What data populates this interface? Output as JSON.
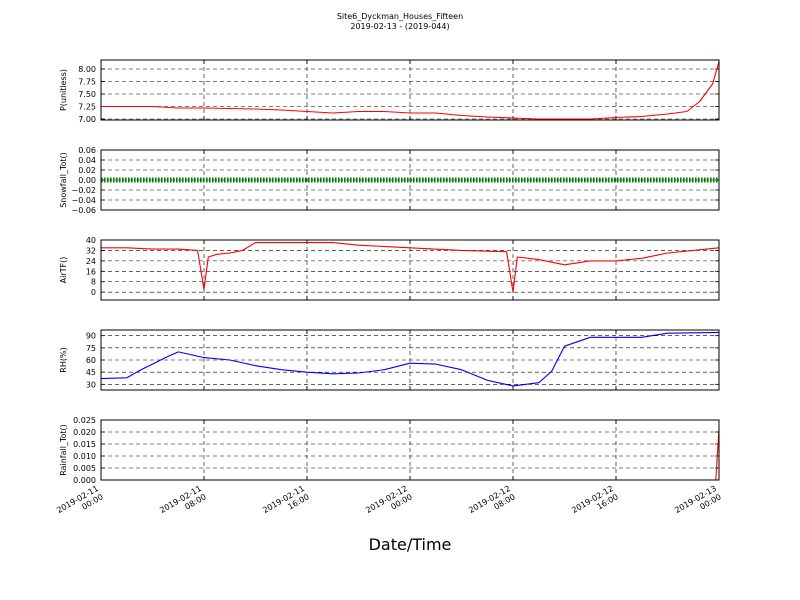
{
  "figure": {
    "title_line1": "Site6_Dyckman_Houses_Fifteen",
    "title_line2": "2019-02-13 - (2019-044)",
    "xlabel": "Date/Time"
  },
  "x_axis": {
    "start": "2019-02-11 00:00",
    "end": "2019-02-13 00:00",
    "tick_labels": [
      [
        "2019-02-11",
        "00:00"
      ],
      [
        "2019-02-11",
        "08:00"
      ],
      [
        "2019-02-11",
        "16:00"
      ],
      [
        "2019-02-12",
        "00:00"
      ],
      [
        "2019-02-12",
        "08:00"
      ],
      [
        "2019-02-12",
        "16:00"
      ],
      [
        "2019-02-13",
        "00:00"
      ]
    ]
  },
  "chart_data": [
    {
      "type": "line",
      "ylabel": "P(unitless)",
      "ylim": [
        6.98,
        8.18
      ],
      "yticks": [
        7.0,
        7.25,
        7.5,
        7.75,
        8.0
      ],
      "ytick_labels": [
        "7.00",
        "7.25",
        "7.50",
        "7.75",
        "8.00"
      ],
      "grid": true,
      "color": "#ff0000",
      "x": [
        "2019-02-11 00:00",
        "2019-02-11 02:00",
        "2019-02-11 04:00",
        "2019-02-11 06:00",
        "2019-02-11 08:00",
        "2019-02-11 10:00",
        "2019-02-11 12:00",
        "2019-02-11 14:00",
        "2019-02-11 16:00",
        "2019-02-11 18:00",
        "2019-02-11 20:00",
        "2019-02-11 22:00",
        "2019-02-12 00:00",
        "2019-02-12 02:00",
        "2019-02-12 04:00",
        "2019-02-12 06:00",
        "2019-02-12 08:00",
        "2019-02-12 10:00",
        "2019-02-12 12:00",
        "2019-02-12 14:00",
        "2019-02-12 16:00",
        "2019-02-12 18:00",
        "2019-02-12 20:00",
        "2019-02-12 21:30",
        "2019-02-12 22:30",
        "2019-02-12 23:30",
        "2019-02-13 00:00"
      ],
      "y": [
        7.25,
        7.25,
        7.25,
        7.22,
        7.22,
        7.21,
        7.2,
        7.18,
        7.15,
        7.12,
        7.15,
        7.15,
        7.12,
        7.12,
        7.07,
        7.04,
        7.02,
        7.0,
        7.0,
        7.0,
        7.03,
        7.05,
        7.1,
        7.15,
        7.35,
        7.7,
        8.15
      ]
    },
    {
      "type": "line",
      "ylabel": "Snowfall_Tot()",
      "ylim": [
        -0.06,
        0.06
      ],
      "yticks": [
        -0.06,
        -0.04,
        -0.02,
        0.0,
        0.02,
        0.04,
        0.06
      ],
      "ytick_labels": [
        "−0.06",
        "−0.04",
        "−0.02",
        "0.00",
        "0.02",
        "0.04",
        "0.06"
      ],
      "grid": true,
      "color": "#008000",
      "marker": "dots",
      "x": [
        "2019-02-11 00:00",
        "2019-02-13 00:00"
      ],
      "y": [
        0.0,
        0.0
      ]
    },
    {
      "type": "line",
      "ylabel": "AirTF()",
      "ylim": [
        -6,
        40
      ],
      "yticks": [
        0,
        8,
        16,
        24,
        32,
        40
      ],
      "ytick_labels": [
        "0",
        "8",
        "16",
        "24",
        "32",
        "40"
      ],
      "grid": true,
      "color": "#ff0000",
      "x": [
        "2019-02-11 00:00",
        "2019-02-11 02:00",
        "2019-02-11 04:00",
        "2019-02-11 06:00",
        "2019-02-11 07:30",
        "2019-02-11 08:00",
        "2019-02-11 08:20",
        "2019-02-11 09:00",
        "2019-02-11 10:00",
        "2019-02-11 11:00",
        "2019-02-11 12:00",
        "2019-02-11 14:00",
        "2019-02-11 16:00",
        "2019-02-11 18:00",
        "2019-02-11 20:00",
        "2019-02-12 00:00",
        "2019-02-12 04:00",
        "2019-02-12 07:30",
        "2019-02-12 08:00",
        "2019-02-12 08:20",
        "2019-02-12 10:00",
        "2019-02-12 12:00",
        "2019-02-12 14:00",
        "2019-02-12 16:00",
        "2019-02-12 18:00",
        "2019-02-12 20:00",
        "2019-02-12 22:00",
        "2019-02-13 00:00"
      ],
      "y": [
        34,
        34,
        33,
        33,
        32,
        2,
        27,
        29,
        30,
        32,
        38,
        38,
        38,
        38,
        36,
        34,
        32,
        31,
        0,
        27,
        25,
        21,
        24,
        24,
        26,
        30,
        32,
        34
      ]
    },
    {
      "type": "line",
      "ylabel": "RH(%)",
      "ylim": [
        23,
        97
      ],
      "yticks": [
        30,
        45,
        60,
        75,
        90
      ],
      "ytick_labels": [
        "30",
        "45",
        "60",
        "75",
        "90"
      ],
      "grid": true,
      "color": "#0000ff",
      "x": [
        "2019-02-11 00:00",
        "2019-02-11 02:00",
        "2019-02-11 03:00",
        "2019-02-11 04:00",
        "2019-02-11 05:00",
        "2019-02-11 06:00",
        "2019-02-11 08:00",
        "2019-02-11 10:00",
        "2019-02-11 12:00",
        "2019-02-11 14:00",
        "2019-02-11 16:00",
        "2019-02-11 18:00",
        "2019-02-11 20:00",
        "2019-02-11 22:00",
        "2019-02-12 00:00",
        "2019-02-12 02:00",
        "2019-02-12 04:00",
        "2019-02-12 06:00",
        "2019-02-12 08:00",
        "2019-02-12 10:00",
        "2019-02-12 11:00",
        "2019-02-12 12:00",
        "2019-02-12 14:00",
        "2019-02-12 16:00",
        "2019-02-12 18:00",
        "2019-02-12 20:00",
        "2019-02-13 00:00"
      ],
      "y": [
        37,
        38,
        47,
        55,
        63,
        70,
        63,
        60,
        53,
        48,
        45,
        43,
        44,
        48,
        56,
        55,
        48,
        35,
        28,
        32,
        46,
        77,
        88,
        88,
        88,
        93,
        94
      ]
    },
    {
      "type": "line",
      "ylabel": "Rainfall_Tot()",
      "ylim": [
        0.0,
        0.025
      ],
      "yticks": [
        0.0,
        0.005,
        0.01,
        0.015,
        0.02,
        0.025
      ],
      "ytick_labels": [
        "0.000",
        "0.005",
        "0.010",
        "0.015",
        "0.020",
        "0.025"
      ],
      "grid": true,
      "color": "#ff0000",
      "x": [
        "2019-02-11 00:00",
        "2019-02-12 23:45",
        "2019-02-13 00:00"
      ],
      "y": [
        0.0,
        0.0,
        0.021
      ]
    }
  ]
}
